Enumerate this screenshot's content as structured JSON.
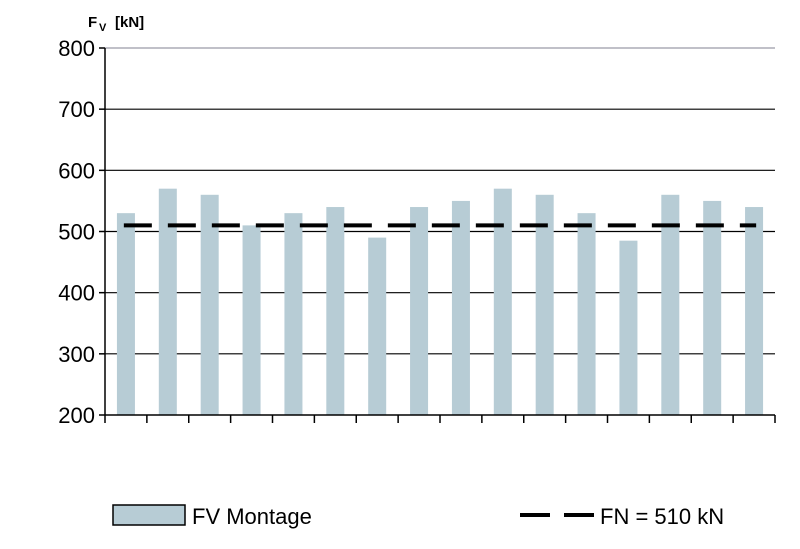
{
  "chart_data": {
    "type": "bar",
    "ylabel_main": "F",
    "ylabel_sub": "V",
    "ylabel_unit": "[kN]",
    "ylim": [
      200,
      800
    ],
    "yticks": [
      "800",
      "700",
      "600",
      "500",
      "400",
      "300",
      "200"
    ],
    "grid": true,
    "series": [
      {
        "name": "FV Montage",
        "color": "#b7ccd5",
        "values": [
          530,
          570,
          560,
          510,
          530,
          540,
          490,
          540,
          550,
          570,
          560,
          530,
          485,
          560,
          550,
          540
        ]
      }
    ],
    "reference_line": {
      "name": "FN = 510 kN",
      "value": 510,
      "style": "dashed",
      "color": "#000000"
    },
    "legend": {
      "position": "bottom",
      "bar_label": "FV Montage",
      "line_label": "FN = 510 kN"
    }
  }
}
